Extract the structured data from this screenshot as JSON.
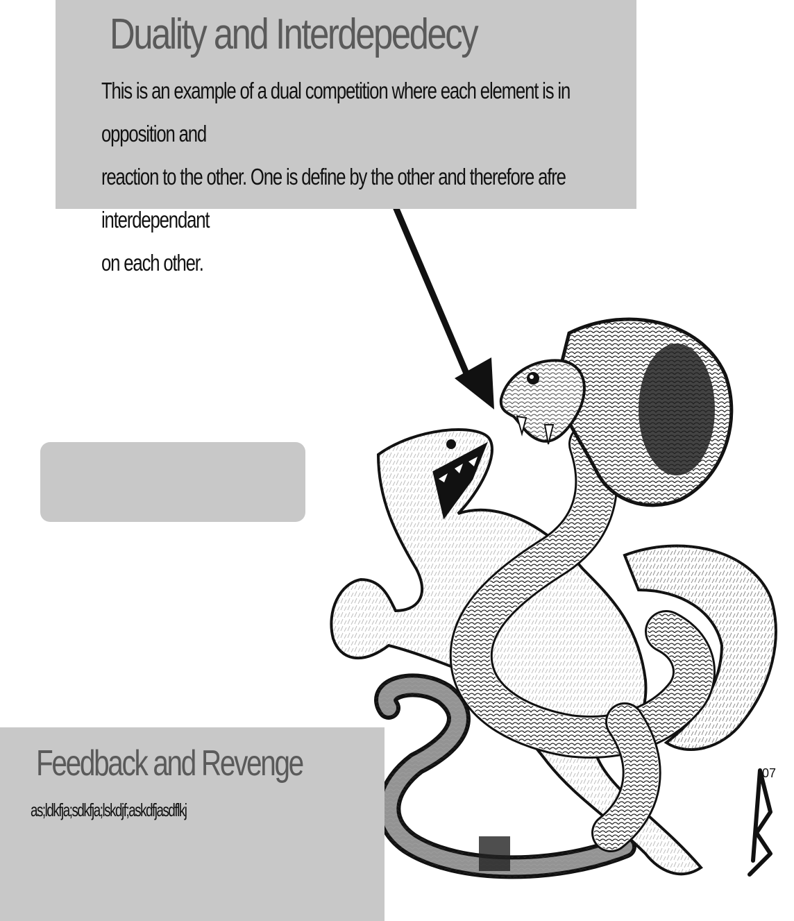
{
  "top_panel": {
    "title": "Duality and Interdepedecy",
    "body_lines": [
      "This is an example of a dual competition where each element is in opposition and",
      "reaction to the other. One is define by the other and therefore afre interdependant",
      "on each other."
    ]
  },
  "bottom_panel": {
    "title": "Feedback and Revenge",
    "body": "as;ldkfja;sdkfja;lskdjf;askdfjasdflkj"
  },
  "colors": {
    "panel_gray": "#c8c8c8",
    "title_gray": "#5a5a5a",
    "ink": "#111111"
  },
  "icons": {
    "arrow": "arrow-icon",
    "illustration": "mongoose-cobra-illustration"
  }
}
